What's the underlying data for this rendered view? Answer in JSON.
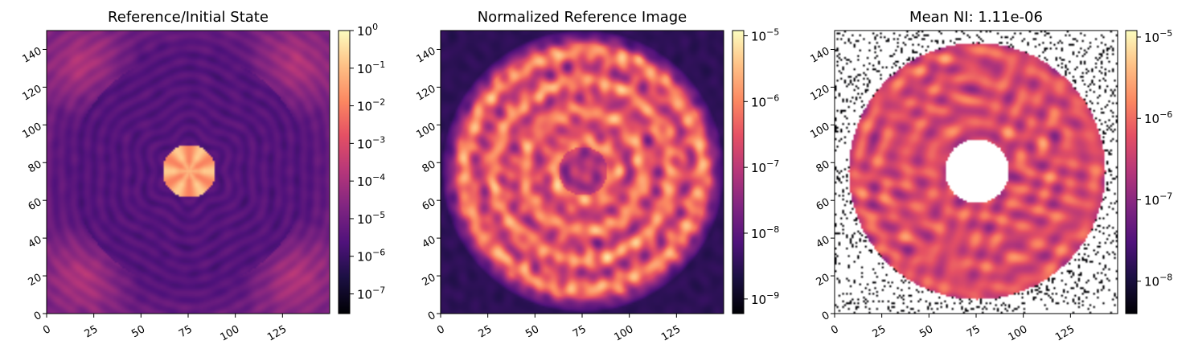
{
  "colormap": "magma",
  "chart_data": [
    {
      "type": "heatmap",
      "id": "p1",
      "title": "Reference/Initial State",
      "xlim": [
        0,
        150
      ],
      "ylim": [
        0,
        150
      ],
      "xticks": [
        "0",
        "25",
        "50",
        "75",
        "100",
        "125"
      ],
      "yticks": [
        "0",
        "20",
        "40",
        "60",
        "80",
        "100",
        "120",
        "140"
      ],
      "pattern": "psf",
      "colorbar": {
        "scale": "log",
        "range": [
          3e-08,
          1
        ],
        "ticks": [
          {
            "v": 1e-07,
            "label": "10",
            "exp": "−7"
          },
          {
            "v": 1e-06,
            "label": "10",
            "exp": "−6"
          },
          {
            "v": 1e-05,
            "label": "10",
            "exp": "−5"
          },
          {
            "v": 0.0001,
            "label": "10",
            "exp": "−4"
          },
          {
            "v": 0.001,
            "label": "10",
            "exp": "−3"
          },
          {
            "v": 0.01,
            "label": "10",
            "exp": "−2"
          },
          {
            "v": 0.1,
            "label": "10",
            "exp": "−1"
          },
          {
            "v": 1,
            "label": "10",
            "exp": "0"
          }
        ]
      }
    },
    {
      "type": "heatmap",
      "id": "p2",
      "title": "Normalized Reference Image",
      "xlim": [
        0,
        150
      ],
      "ylim": [
        0,
        150
      ],
      "xticks": [
        "0",
        "25",
        "50",
        "75",
        "100",
        "125"
      ],
      "yticks": [
        "0",
        "20",
        "40",
        "60",
        "80",
        "100",
        "120",
        "140"
      ],
      "pattern": "speckle",
      "colorbar": {
        "scale": "log",
        "range": [
          6e-10,
          1.2e-05
        ],
        "ticks": [
          {
            "v": 1e-09,
            "label": "10",
            "exp": "−9"
          },
          {
            "v": 1e-08,
            "label": "10",
            "exp": "−8"
          },
          {
            "v": 1e-07,
            "label": "10",
            "exp": "−7"
          },
          {
            "v": 1e-06,
            "label": "10",
            "exp": "−6"
          },
          {
            "v": 1e-05,
            "label": "10",
            "exp": "−5"
          }
        ]
      }
    },
    {
      "type": "heatmap",
      "id": "p3",
      "title": "Mean NI: 1.11e-06",
      "mean_ni": 1.11e-06,
      "xlim": [
        0,
        150
      ],
      "ylim": [
        0,
        150
      ],
      "xticks": [
        "0",
        "25",
        "50",
        "75",
        "100",
        "125"
      ],
      "yticks": [
        "0",
        "20",
        "40",
        "60",
        "80",
        "100",
        "120",
        "140"
      ],
      "pattern": "masked-annulus",
      "colorbar": {
        "scale": "log",
        "range": [
          4e-09,
          1.2e-05
        ],
        "ticks": [
          {
            "v": 1e-08,
            "label": "10",
            "exp": "−8"
          },
          {
            "v": 1e-07,
            "label": "10",
            "exp": "−7"
          },
          {
            "v": 1e-06,
            "label": "10",
            "exp": "−6"
          },
          {
            "v": 1e-05,
            "label": "10",
            "exp": "−5"
          }
        ]
      }
    }
  ]
}
